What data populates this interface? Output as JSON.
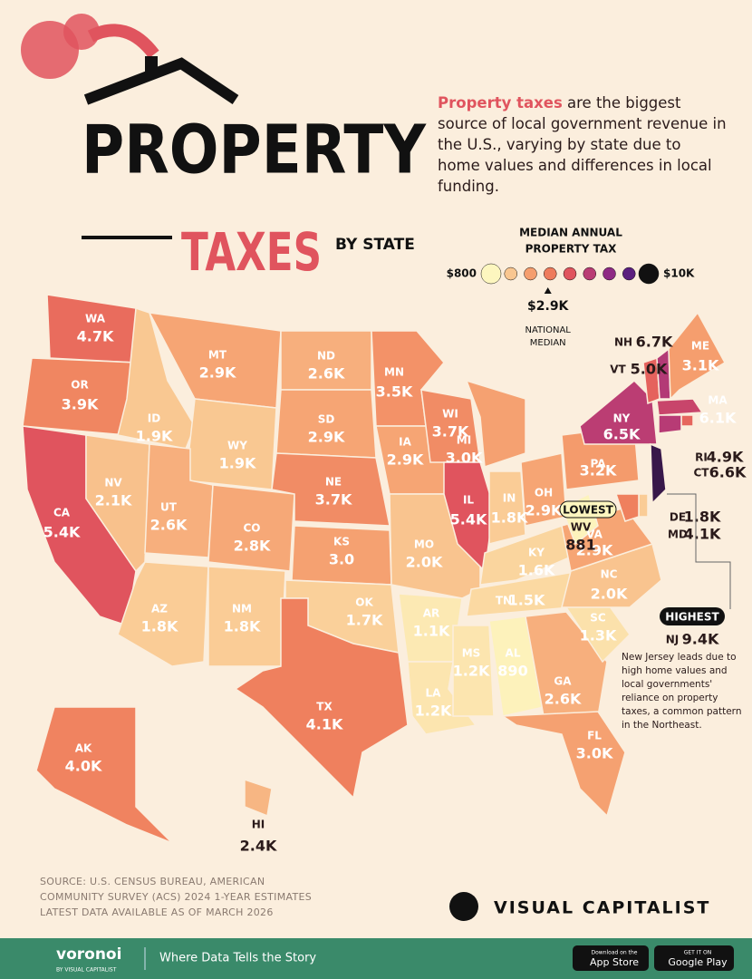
{
  "header": {
    "title_line1": "PROPERTY",
    "title_line2": "TAXES",
    "title_suffix": "BY STATE",
    "intro_bold": "Property taxes",
    "intro_rest": " are the biggest source of local government revenue in the U.S., varying by state due to home values and differences in local funding."
  },
  "legend": {
    "title_line1": "MEDIAN ANNUAL",
    "title_line2": "PROPERTY TAX",
    "min": {
      "value": 800,
      "label": "$800"
    },
    "max": {
      "value": 10000,
      "label": "$10K"
    },
    "colors": [
      "#fdf6bf",
      "#f9c690",
      "#f59e6e",
      "#ee7b5c",
      "#e0545e",
      "#b93c74",
      "#8e2a84",
      "#5b1f7f",
      "#111111"
    ],
    "median": {
      "value": 2900,
      "label": "$2.9K",
      "caption_line1": "NATIONAL",
      "caption_line2": "MEDIAN"
    }
  },
  "states": [
    {
      "abbr": "WA",
      "value": 4700,
      "label": "4.7K"
    },
    {
      "abbr": "OR",
      "value": 3900,
      "label": "3.9K"
    },
    {
      "abbr": "CA",
      "value": 5400,
      "label": "5.4K"
    },
    {
      "abbr": "NV",
      "value": 2100,
      "label": "2.1K"
    },
    {
      "abbr": "ID",
      "value": 1900,
      "label": "1.9K"
    },
    {
      "abbr": "MT",
      "value": 2900,
      "label": "2.9K"
    },
    {
      "abbr": "WY",
      "value": 1900,
      "label": "1.9K"
    },
    {
      "abbr": "UT",
      "value": 2600,
      "label": "2.6K"
    },
    {
      "abbr": "CO",
      "value": 2800,
      "label": "2.8K"
    },
    {
      "abbr": "AZ",
      "value": 1800,
      "label": "1.8K"
    },
    {
      "abbr": "NM",
      "value": 1800,
      "label": "1.8K"
    },
    {
      "abbr": "ND",
      "value": 2600,
      "label": "2.6K"
    },
    {
      "abbr": "SD",
      "value": 2900,
      "label": "2.9K"
    },
    {
      "abbr": "NE",
      "value": 3700,
      "label": "3.7K"
    },
    {
      "abbr": "KS",
      "value": 3000,
      "label": "3.0"
    },
    {
      "abbr": "OK",
      "value": 1700,
      "label": "1.7K"
    },
    {
      "abbr": "TX",
      "value": 4100,
      "label": "4.1K"
    },
    {
      "abbr": "MN",
      "value": 3500,
      "label": "3.5K"
    },
    {
      "abbr": "IA",
      "value": 2900,
      "label": "2.9K"
    },
    {
      "abbr": "MO",
      "value": 2000,
      "label": "2.0K"
    },
    {
      "abbr": "AR",
      "value": 1100,
      "label": "1.1K"
    },
    {
      "abbr": "LA",
      "value": 1200,
      "label": "1.2K"
    },
    {
      "abbr": "WI",
      "value": 3700,
      "label": "3.7K"
    },
    {
      "abbr": "IL",
      "value": 5400,
      "label": "5.4K"
    },
    {
      "abbr": "MI",
      "value": 3000,
      "label": "3.0K"
    },
    {
      "abbr": "IN",
      "value": 1800,
      "label": "1.8K"
    },
    {
      "abbr": "OH",
      "value": 2900,
      "label": "2.9K"
    },
    {
      "abbr": "KY",
      "value": 1600,
      "label": "1.6K"
    },
    {
      "abbr": "TN",
      "value": 1500,
      "label": "1.5K"
    },
    {
      "abbr": "MS",
      "value": 1200,
      "label": "1.2K"
    },
    {
      "abbr": "AL",
      "value": 890,
      "label": "890"
    },
    {
      "abbr": "GA",
      "value": 2600,
      "label": "2.6K"
    },
    {
      "abbr": "FL",
      "value": 3000,
      "label": "3.0K"
    },
    {
      "abbr": "SC",
      "value": 1300,
      "label": "1.3K"
    },
    {
      "abbr": "NC",
      "value": 2000,
      "label": "2.0K"
    },
    {
      "abbr": "VA",
      "value": 2900,
      "label": "2.9K"
    },
    {
      "abbr": "WV",
      "value": 881,
      "label": "881"
    },
    {
      "abbr": "PA",
      "value": 3200,
      "label": "3.2K"
    },
    {
      "abbr": "NY",
      "value": 6500,
      "label": "6.5K"
    },
    {
      "abbr": "VT",
      "value": 5000,
      "label": "5.0K"
    },
    {
      "abbr": "NH",
      "value": 6700,
      "label": "6.7K"
    },
    {
      "abbr": "ME",
      "value": 3100,
      "label": "3.1K"
    },
    {
      "abbr": "MA",
      "value": 6100,
      "label": "6.1K"
    },
    {
      "abbr": "RI",
      "value": 4900,
      "label": "4.9K"
    },
    {
      "abbr": "CT",
      "value": 6600,
      "label": "6.6K"
    },
    {
      "abbr": "NJ",
      "value": 9400,
      "label": "9.4K"
    },
    {
      "abbr": "DE",
      "value": 1800,
      "label": "1.8K"
    },
    {
      "abbr": "MD",
      "value": 4100,
      "label": "4.1K"
    },
    {
      "abbr": "AK",
      "value": 4000,
      "label": "4.0K"
    },
    {
      "abbr": "HI",
      "value": 2400,
      "label": "2.4K"
    }
  ],
  "callouts": {
    "lowest": "LOWEST",
    "highest": "HIGHEST",
    "highest_note": "New Jersey leads due to high home values and local governments' reliance on property taxes, a common pattern in the Northeast."
  },
  "source": {
    "line1": "SOURCE:  U.S. CENSUS BUREAU, AMERICAN",
    "line2": "COMMUNITY SURVEY (ACS) 2024 1-YEAR ESTIMATES",
    "line3": "LATEST DATA AVAILABLE AS OF MARCH 2026"
  },
  "brand": "VISUAL CAPITALIST",
  "footer": {
    "logo": "voronoi",
    "logo_sub": "BY VISUAL CAPITALIST",
    "tagline": "Where Data Tells the Story",
    "app_store_small": "Download on the",
    "app_store": "App Store",
    "play_small": "GET IT ON",
    "play": "Google Play"
  }
}
